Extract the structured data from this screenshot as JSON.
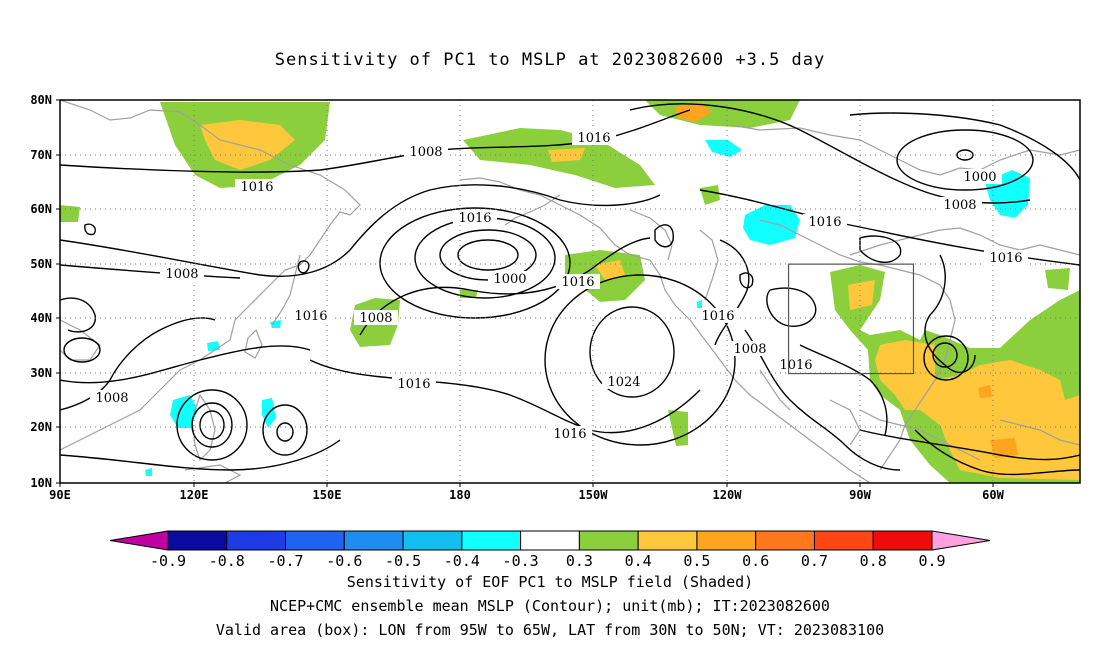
{
  "title": "Sensitivity of PC1 to MSLP at 2023082600 +3.5 day",
  "lat_labels": [
    "80N",
    "70N",
    "60N",
    "50N",
    "40N",
    "30N",
    "20N",
    "10N"
  ],
  "lon_labels": [
    "90E",
    "120E",
    "150E",
    "180",
    "150W",
    "120W",
    "90W",
    "60W"
  ],
  "contour_labels": [
    {
      "text": "1008"
    },
    {
      "text": "1016"
    },
    {
      "text": "1016"
    },
    {
      "text": "1000"
    },
    {
      "text": "1008"
    },
    {
      "text": "1016"
    },
    {
      "text": "1016"
    },
    {
      "text": "1016"
    },
    {
      "text": "1008"
    },
    {
      "text": "1000"
    },
    {
      "text": "1016"
    },
    {
      "text": "1008"
    },
    {
      "text": "1016"
    },
    {
      "text": "1016"
    },
    {
      "text": "1024"
    },
    {
      "text": "1008"
    },
    {
      "text": "1016"
    },
    {
      "text": "1016"
    },
    {
      "text": "1008"
    },
    {
      "text": "1016"
    }
  ],
  "colorbar": {
    "colors": [
      "#c000a0",
      "#0a0aa0",
      "#1e3ce6",
      "#1e64f0",
      "#1e8cf0",
      "#10bef0",
      "#10ffff",
      "#ffffff",
      "#8ccf3c",
      "#ffc83c",
      "#ffa41e",
      "#ff781e",
      "#ff4614",
      "#f00a0a",
      "#ffa0e0"
    ],
    "labels": [
      "-0.9",
      "-0.8",
      "-0.7",
      "-0.6",
      "-0.5",
      "-0.4",
      "-0.3",
      "0.3",
      "0.4",
      "0.5",
      "0.6",
      "0.7",
      "0.8",
      "0.9"
    ]
  },
  "valid_box": {
    "lon_w": -95,
    "lon_e": -65,
    "lat_s": 30,
    "lat_n": 50
  },
  "captions": [
    "Sensitivity of EOF PC1 to MSLP field (Shaded)",
    "NCEP+CMC ensemble mean MSLP (Contour); unit(mb); IT:2023082600",
    "Valid area (box): LON from 95W to 65W, LAT from 30N to 50N; VT: 2023083100"
  ]
}
